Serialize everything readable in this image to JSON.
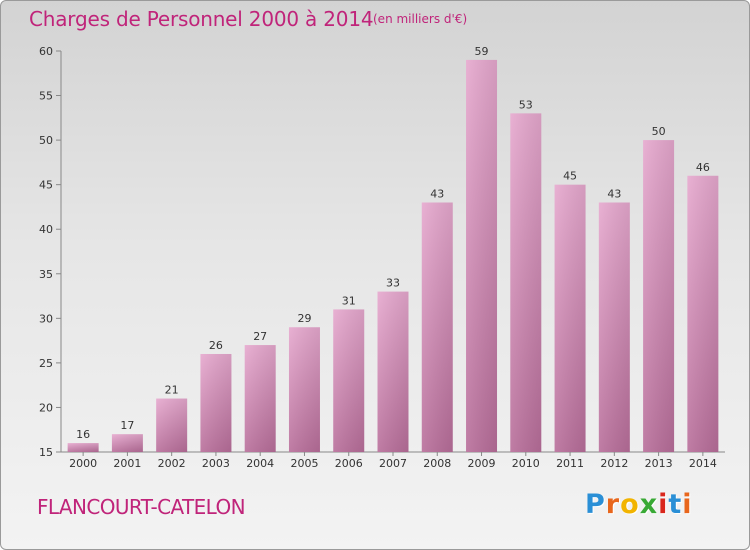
{
  "chart_data": {
    "type": "bar",
    "title": "Charges de Personnel 2000 à 2014",
    "subtitle": "(en milliers d'€)",
    "categories": [
      "2000",
      "2001",
      "2002",
      "2003",
      "2004",
      "2005",
      "2006",
      "2007",
      "2008",
      "2009",
      "2010",
      "2011",
      "2012",
      "2013",
      "2014"
    ],
    "values": [
      16,
      17,
      21,
      26,
      27,
      29,
      31,
      33,
      43,
      59,
      53,
      45,
      43,
      50,
      46
    ],
    "ylim": [
      15,
      60
    ],
    "yticks": [
      15,
      20,
      25,
      30,
      35,
      40,
      45,
      50,
      55,
      60
    ],
    "xlabel": "",
    "ylabel": "",
    "bar_color": "#e2a0c8",
    "grid": false
  },
  "commune": "FLANCOURT-CATELON",
  "logo": {
    "letters": [
      "P",
      "r",
      "o",
      "x",
      "i",
      "t",
      "i"
    ],
    "colors": [
      "#2a8fd6",
      "#e8661c",
      "#f2b400",
      "#39a935",
      "#d9261c",
      "#2a8fd6",
      "#e8661c"
    ]
  },
  "colors": {
    "accent": "#c0247a"
  }
}
